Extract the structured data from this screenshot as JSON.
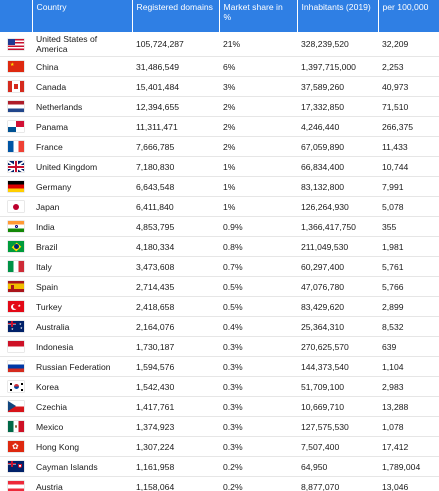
{
  "table": {
    "headers": {
      "country": "Country",
      "registered": "Registered domains",
      "share": "Market share in %",
      "inhabitants": "Inhabitants (2019)",
      "per100k": "per 100,000"
    },
    "rows": [
      {
        "flag": "us-flag-icon",
        "country": "United States of America",
        "registered": "105,724,287",
        "share": "21%",
        "inhabitants": "328,239,520",
        "per100k": "32,209"
      },
      {
        "flag": "cn-flag-icon",
        "country": "China",
        "registered": "31,486,549",
        "share": "6%",
        "inhabitants": "1,397,715,000",
        "per100k": "2,253"
      },
      {
        "flag": "ca-flag-icon",
        "country": "Canada",
        "registered": "15,401,484",
        "share": "3%",
        "inhabitants": "37,589,260",
        "per100k": "40,973"
      },
      {
        "flag": "nl-flag-icon",
        "country": "Netherlands",
        "registered": "12,394,655",
        "share": "2%",
        "inhabitants": "17,332,850",
        "per100k": "71,510"
      },
      {
        "flag": "pa-flag-icon",
        "country": "Panama",
        "registered": "11,311,471",
        "share": "2%",
        "inhabitants": "4,246,440",
        "per100k": "266,375"
      },
      {
        "flag": "fr-flag-icon",
        "country": "France",
        "registered": "7,666,785",
        "share": "2%",
        "inhabitants": "67,059,890",
        "per100k": "11,433"
      },
      {
        "flag": "gb-flag-icon",
        "country": "United Kingdom",
        "registered": "7,180,830",
        "share": "1%",
        "inhabitants": "66,834,400",
        "per100k": "10,744"
      },
      {
        "flag": "de-flag-icon",
        "country": "Germany",
        "registered": "6,643,548",
        "share": "1%",
        "inhabitants": "83,132,800",
        "per100k": "7,991"
      },
      {
        "flag": "jp-flag-icon",
        "country": "Japan",
        "registered": "6,411,840",
        "share": "1%",
        "inhabitants": "126,264,930",
        "per100k": "5,078"
      },
      {
        "flag": "in-flag-icon",
        "country": "India",
        "registered": "4,853,795",
        "share": "0.9%",
        "inhabitants": "1,366,417,750",
        "per100k": "355"
      },
      {
        "flag": "br-flag-icon",
        "country": "Brazil",
        "registered": "4,180,334",
        "share": "0.8%",
        "inhabitants": "211,049,530",
        "per100k": "1,981"
      },
      {
        "flag": "it-flag-icon",
        "country": "Italy",
        "registered": "3,473,608",
        "share": "0.7%",
        "inhabitants": "60,297,400",
        "per100k": "5,761"
      },
      {
        "flag": "es-flag-icon",
        "country": "Spain",
        "registered": "2,714,435",
        "share": "0.5%",
        "inhabitants": "47,076,780",
        "per100k": "5,766"
      },
      {
        "flag": "tr-flag-icon",
        "country": "Turkey",
        "registered": "2,418,658",
        "share": "0.5%",
        "inhabitants": "83,429,620",
        "per100k": "2,899"
      },
      {
        "flag": "au-flag-icon",
        "country": "Australia",
        "registered": "2,164,076",
        "share": "0.4%",
        "inhabitants": "25,364,310",
        "per100k": "8,532"
      },
      {
        "flag": "id-flag-icon",
        "country": "Indonesia",
        "registered": "1,730,187",
        "share": "0.3%",
        "inhabitants": "270,625,570",
        "per100k": "639"
      },
      {
        "flag": "ru-flag-icon",
        "country": "Russian Federation",
        "registered": "1,594,576",
        "share": "0.3%",
        "inhabitants": "144,373,540",
        "per100k": "1,104"
      },
      {
        "flag": "kr-flag-icon",
        "country": "Korea",
        "registered": "1,542,430",
        "share": "0.3%",
        "inhabitants": "51,709,100",
        "per100k": "2,983"
      },
      {
        "flag": "cz-flag-icon",
        "country": "Czechia",
        "registered": "1,417,761",
        "share": "0.3%",
        "inhabitants": "10,669,710",
        "per100k": "13,288"
      },
      {
        "flag": "mx-flag-icon",
        "country": "Mexico",
        "registered": "1,374,923",
        "share": "0.3%",
        "inhabitants": "127,575,530",
        "per100k": "1,078"
      },
      {
        "flag": "hk-flag-icon",
        "country": "Hong Kong",
        "registered": "1,307,224",
        "share": "0.3%",
        "inhabitants": "7,507,400",
        "per100k": "17,412"
      },
      {
        "flag": "ky-flag-icon",
        "country": "Cayman Islands",
        "registered": "1,161,958",
        "share": "0.2%",
        "inhabitants": "64,950",
        "per100k": "1,789,004"
      },
      {
        "flag": "at-flag-icon",
        "country": "Austria",
        "registered": "1,158,064",
        "share": "0.2%",
        "inhabitants": "8,877,070",
        "per100k": "13,046"
      }
    ]
  },
  "colors": {
    "header_bg": "#2f7fe4",
    "header_text": "#ffffff",
    "row_border": "#e6e6e6"
  }
}
